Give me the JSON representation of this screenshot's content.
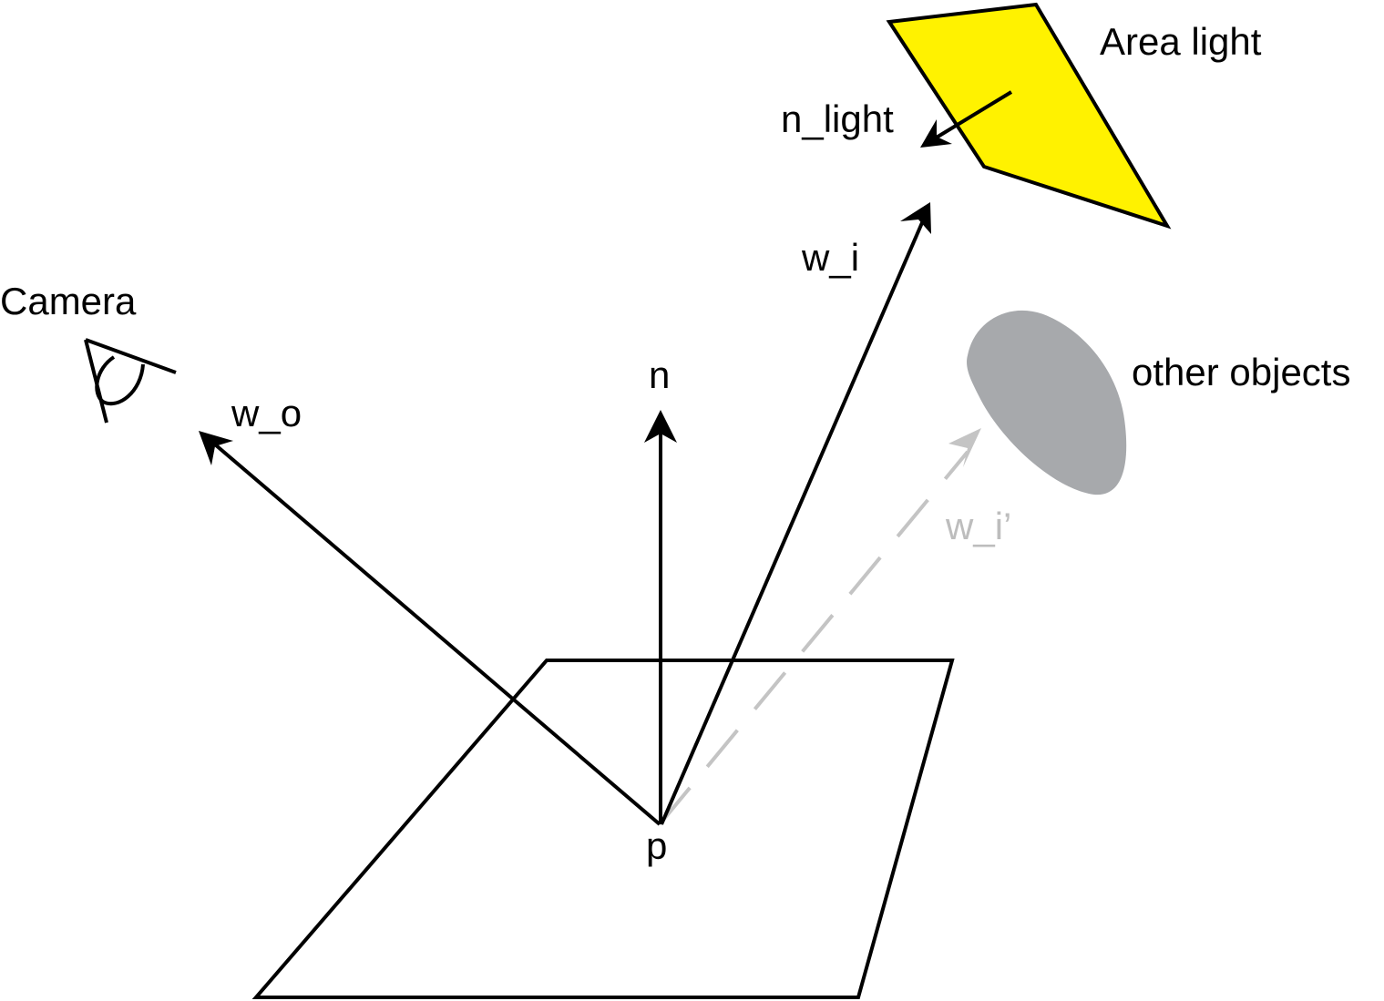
{
  "diagram": {
    "labels": {
      "area_light": "Area light",
      "n_light": "n_light",
      "w_i": "w_i",
      "camera": "Camera",
      "n": "n",
      "other_objects": "other objects",
      "w_o": "w_o",
      "w_i_prime": "w_i’",
      "p": "p"
    },
    "colors": {
      "area_light_fill": "#fff200",
      "other_objects_fill": "#a7a9ac",
      "ink": "#000000",
      "occluded_ray": "#c4c4c4"
    },
    "icons": {
      "camera": "eye-icon"
    }
  }
}
